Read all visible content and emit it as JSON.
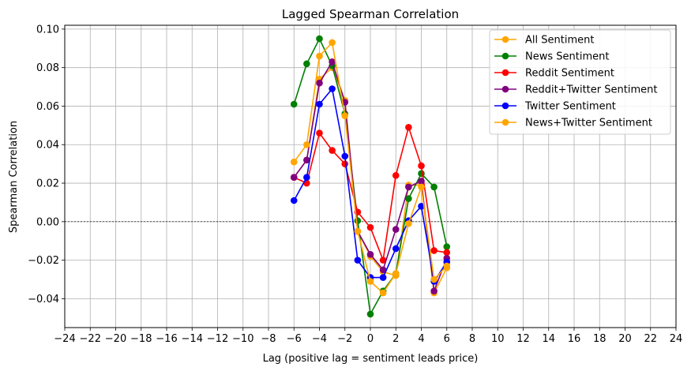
{
  "chart_data": {
    "type": "line",
    "title": "Lagged Spearman Correlation",
    "xlabel": "Lag (positive lag = sentiment leads price)",
    "ylabel": "Spearman Correlation",
    "xlim": [
      -24,
      24
    ],
    "ylim": [
      -0.055,
      0.102
    ],
    "xticks": [
      -24,
      -22,
      -20,
      -18,
      -16,
      -14,
      -12,
      -10,
      -8,
      -6,
      -4,
      -2,
      0,
      2,
      4,
      6,
      8,
      10,
      12,
      14,
      16,
      18,
      20,
      22,
      24
    ],
    "xtick_labels": [
      "−24",
      "−22",
      "−20",
      "−18",
      "−16",
      "−14",
      "−12",
      "−10",
      "−8",
      "−6",
      "−4",
      "−2",
      "0",
      "2",
      "4",
      "6",
      "8",
      "10",
      "12",
      "14",
      "16",
      "18",
      "20",
      "22",
      "24"
    ],
    "yticks": [
      -0.04,
      -0.02,
      0.0,
      0.02,
      0.04,
      0.06,
      0.08,
      0.1
    ],
    "ytick_labels": [
      "−0.04",
      "−0.02",
      "0.00",
      "0.02",
      "0.04",
      "0.06",
      "0.08",
      "0.10"
    ],
    "grid": true,
    "zero_line": true,
    "legend_position": "top-right",
    "x": [
      -6,
      -5,
      -4,
      -3,
      -2,
      -1,
      0,
      1,
      2,
      3,
      4,
      5,
      6
    ],
    "series": [
      {
        "name": "All Sentiment",
        "color": "#ffa500",
        "values": [
          0.023,
          0.032,
          0.074,
          0.08,
          0.063,
          -0.005,
          -0.018,
          -0.026,
          -0.028,
          0.019,
          0.019,
          -0.037,
          -0.024
        ]
      },
      {
        "name": "News Sentiment",
        "color": "#008000",
        "values": [
          0.061,
          0.082,
          0.095,
          0.081,
          0.056,
          0.0005,
          -0.048,
          -0.036,
          -0.027,
          0.012,
          0.025,
          0.018,
          -0.013
        ]
      },
      {
        "name": "Reddit Sentiment",
        "color": "#ff0000",
        "values": [
          0.023,
          0.02,
          0.046,
          0.037,
          0.03,
          0.005,
          -0.003,
          -0.02,
          0.024,
          0.049,
          0.029,
          -0.015,
          -0.016
        ]
      },
      {
        "name": "Reddit+Twitter Sentiment",
        "color": "#800080",
        "values": [
          0.023,
          0.032,
          0.072,
          0.083,
          0.062,
          -0.005,
          -0.017,
          -0.025,
          -0.004,
          0.018,
          0.021,
          -0.036,
          -0.019
        ]
      },
      {
        "name": "Twitter Sentiment",
        "color": "#0000ff",
        "values": [
          0.011,
          0.023,
          0.061,
          0.069,
          0.034,
          -0.02,
          -0.029,
          -0.029,
          -0.014,
          0.0005,
          0.008,
          -0.031,
          -0.021
        ]
      },
      {
        "name": "News+Twitter Sentiment",
        "color": "#ffa500",
        "values": [
          0.031,
          0.04,
          0.086,
          0.093,
          0.055,
          -0.005,
          -0.031,
          -0.037,
          -0.027,
          -0.001,
          0.018,
          -0.03,
          -0.023
        ]
      }
    ]
  }
}
